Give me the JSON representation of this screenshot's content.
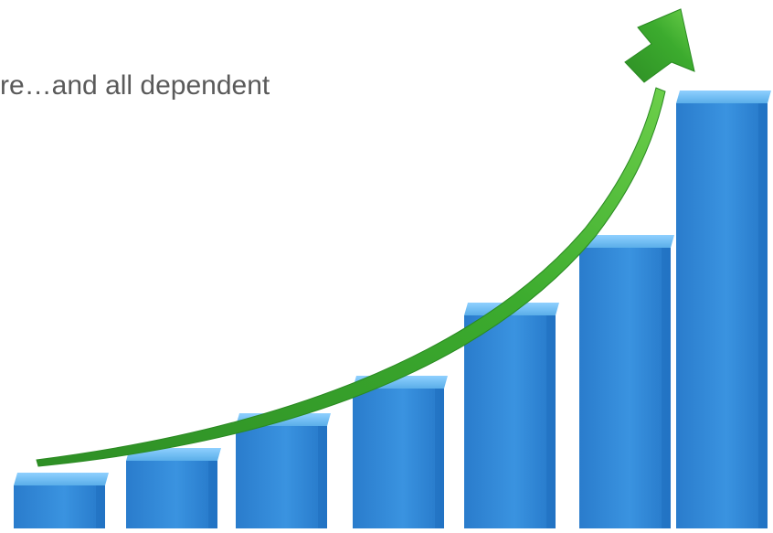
{
  "slide": {
    "caption": "re…and all dependent"
  },
  "graphic": {
    "name": "growth-bar-chart-with-arrow",
    "bars_relative_heights": [
      0.1,
      0.16,
      0.24,
      0.33,
      0.5,
      0.66,
      1.0
    ],
    "colors": {
      "bar_front": "#2f86d6",
      "bar_light": "#5db3f0",
      "bar_dark": "#1f6fbf",
      "arrow": "#3cab2e",
      "arrow_light": "#7fd35a"
    }
  }
}
